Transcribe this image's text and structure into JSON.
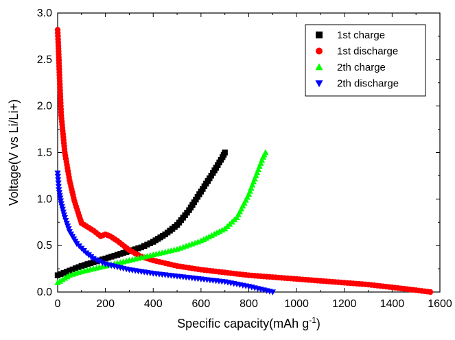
{
  "chart_data": {
    "type": "scatter",
    "title": "",
    "xlabel": "Specific capacity(mAh g",
    "xlabel_sup": "-1",
    "xlabel_close": ")",
    "ylabel": "Voltage(V vs Li/Li+)",
    "xlim": [
      0,
      1600
    ],
    "ylim": [
      0,
      3.0
    ],
    "x_ticks": [
      "0",
      "200",
      "400",
      "600",
      "800",
      "1000",
      "1200",
      "1400",
      "1600"
    ],
    "y_ticks": [
      "0.0",
      "0.5",
      "1.0",
      "1.5",
      "2.0",
      "2.5",
      "3.0"
    ],
    "grid": false,
    "legend_position": "top-right",
    "series": [
      {
        "name": "1st charge",
        "marker": "square",
        "color": "#000000",
        "points": [
          [
            0,
            0.18
          ],
          [
            50,
            0.23
          ],
          [
            100,
            0.28
          ],
          [
            150,
            0.32
          ],
          [
            200,
            0.36
          ],
          [
            250,
            0.4
          ],
          [
            300,
            0.44
          ],
          [
            350,
            0.48
          ],
          [
            400,
            0.54
          ],
          [
            450,
            0.62
          ],
          [
            500,
            0.72
          ],
          [
            550,
            0.88
          ],
          [
            600,
            1.08
          ],
          [
            650,
            1.28
          ],
          [
            690,
            1.45
          ],
          [
            700,
            1.5
          ]
        ]
      },
      {
        "name": "1st discharge",
        "marker": "circle",
        "color": "#ff0000",
        "points": [
          [
            0,
            2.82
          ],
          [
            3,
            2.65
          ],
          [
            8,
            2.3
          ],
          [
            15,
            1.9
          ],
          [
            30,
            1.5
          ],
          [
            50,
            1.2
          ],
          [
            70,
            0.98
          ],
          [
            90,
            0.82
          ],
          [
            100,
            0.74
          ],
          [
            150,
            0.66
          ],
          [
            180,
            0.6
          ],
          [
            200,
            0.62
          ],
          [
            220,
            0.6
          ],
          [
            250,
            0.55
          ],
          [
            300,
            0.45
          ],
          [
            350,
            0.38
          ],
          [
            400,
            0.34
          ],
          [
            500,
            0.28
          ],
          [
            600,
            0.24
          ],
          [
            700,
            0.21
          ],
          [
            800,
            0.18
          ],
          [
            900,
            0.16
          ],
          [
            1000,
            0.14
          ],
          [
            1100,
            0.12
          ],
          [
            1200,
            0.1
          ],
          [
            1300,
            0.08
          ],
          [
            1400,
            0.05
          ],
          [
            1500,
            0.02
          ],
          [
            1560,
            0.0
          ]
        ]
      },
      {
        "name": "2th charge",
        "marker": "triangle-up",
        "color": "#00ff00",
        "points": [
          [
            0,
            0.1
          ],
          [
            50,
            0.18
          ],
          [
            100,
            0.22
          ],
          [
            200,
            0.28
          ],
          [
            300,
            0.34
          ],
          [
            400,
            0.4
          ],
          [
            500,
            0.46
          ],
          [
            600,
            0.55
          ],
          [
            700,
            0.68
          ],
          [
            750,
            0.8
          ],
          [
            800,
            1.05
          ],
          [
            830,
            1.25
          ],
          [
            860,
            1.45
          ],
          [
            870,
            1.5
          ]
        ]
      },
      {
        "name": "2th discharge",
        "marker": "triangle-down",
        "color": "#0000ff",
        "points": [
          [
            0,
            1.28
          ],
          [
            5,
            1.1
          ],
          [
            15,
            0.95
          ],
          [
            30,
            0.8
          ],
          [
            50,
            0.65
          ],
          [
            80,
            0.52
          ],
          [
            120,
            0.42
          ],
          [
            150,
            0.36
          ],
          [
            200,
            0.3
          ],
          [
            300,
            0.24
          ],
          [
            400,
            0.2
          ],
          [
            500,
            0.17
          ],
          [
            600,
            0.14
          ],
          [
            700,
            0.11
          ],
          [
            800,
            0.06
          ],
          [
            850,
            0.03
          ],
          [
            900,
            0.0
          ]
        ]
      }
    ]
  }
}
